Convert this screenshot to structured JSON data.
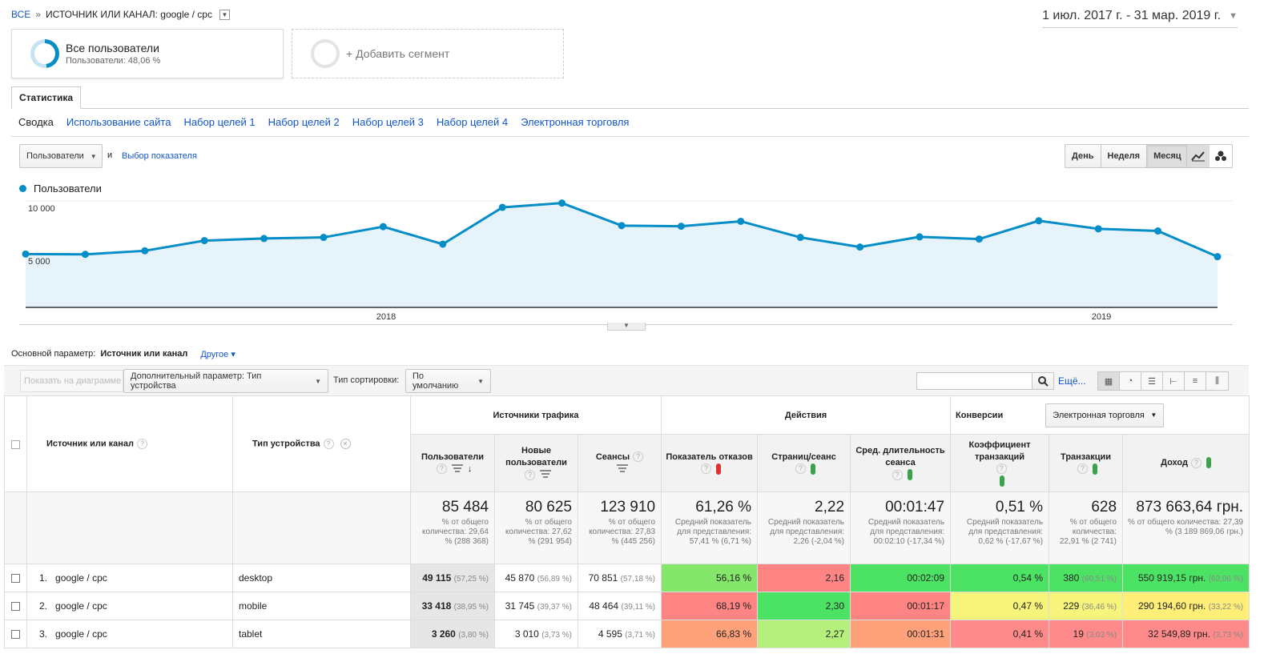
{
  "header": {
    "crumb_all": "ВСЕ",
    "crumb_sep": "»",
    "crumb_current": "ИСТОЧНИК ИЛИ КАНАЛ: google / cpc",
    "date_range": "1 июл. 2017 г. - 31 мар. 2019 г."
  },
  "segments": {
    "active_title": "Все пользователи",
    "active_sub": "Пользователи: 48,06 %",
    "add_label": "+ Добавить сегмент"
  },
  "tabs": {
    "main": "Статистика",
    "sub": [
      "Сводка",
      "Использование сайта",
      "Набор целей 1",
      "Набор целей 2",
      "Набор целей 3",
      "Набор целей 4",
      "Электронная торговля"
    ]
  },
  "chart_controls": {
    "metric_select": "Пользователи",
    "and": "и",
    "choose_metric": "Выбор показателя",
    "periods": [
      "День",
      "Неделя",
      "Месяц"
    ],
    "active_period": "Месяц"
  },
  "chart_data": {
    "type": "area",
    "series": [
      {
        "name": "Пользователи",
        "values": [
          5050,
          5020,
          5350,
          6300,
          6500,
          6600,
          7600,
          5970,
          9400,
          9800,
          7700,
          7640,
          8100,
          6600,
          5700,
          6650,
          6450,
          8150,
          7400,
          7200,
          4800
        ]
      }
    ],
    "x_tick_labels": [
      "2018",
      "2019"
    ],
    "y_tick_labels": [
      "10 000",
      "5 000"
    ],
    "ylim": [
      0,
      10000
    ],
    "color": "#058dc7",
    "fill_color": "#e6f3fa"
  },
  "primary_dimension": {
    "label": "Основной параметр:",
    "value": "Источник или канал",
    "other": "Другое"
  },
  "toolbar": {
    "plot_rows": "Показать на диаграмме",
    "secondary_dim": "Дополнительный параметр: Тип устройства",
    "sort_label": "Тип сортировки:",
    "sort_value": "По умолчанию",
    "more": "Ещё..."
  },
  "table": {
    "dim1": "Источник или канал",
    "dim2": "Тип устройства",
    "group_acquisition": "Источники трафика",
    "group_behavior": "Действия",
    "group_conversions": "Конверсии",
    "conversion_select": "Электронная торговля",
    "cols": {
      "users": "Пользователи",
      "new_users": "Новые пользователи",
      "sessions": "Сеансы",
      "bounce": "Показатель отказов",
      "pages": "Страниц/сеанс",
      "duration": "Сред. длительность сеанса",
      "conv_rate": "Коэффициент транзакций",
      "transactions": "Транзакции",
      "revenue": "Доход"
    },
    "totals": {
      "users": "85 484",
      "users_sub": "% от общего количества: 29,64 % (288 368)",
      "new_users": "80 625",
      "new_users_sub": "% от общего количества: 27,62 % (291 954)",
      "sessions": "123 910",
      "sessions_sub": "% от общего количества: 27,83 % (445 256)",
      "bounce": "61,26 %",
      "bounce_sub": "Средний показатель для представления: 57,41 % (6,71 %)",
      "pages": "2,22",
      "pages_sub": "Средний показатель для представления: 2,26 (-2,04 %)",
      "duration": "00:01:47",
      "duration_sub": "Средний показатель для представления: 00:02:10 (-17,34 %)",
      "conv_rate": "0,51 %",
      "conv_rate_sub": "Средний показатель для представления: 0,62 % (-17,67 %)",
      "transactions": "628",
      "transactions_sub": "% от общего количества: 22,91 % (2 741)",
      "revenue": "873 663,64 грн.",
      "revenue_sub": "% от общего количества: 27,39 % (3 189 869,06 грн.)"
    },
    "rows": [
      {
        "idx": "1.",
        "source": "google / cpc",
        "device": "desktop",
        "users": "49 115",
        "users_pct": "(57,25 %)",
        "new_users": "45 870",
        "new_users_pct": "(56,89 %)",
        "sessions": "70 851",
        "sessions_pct": "(57,18 %)",
        "bounce": "56,16 %",
        "pages": "2,16",
        "duration": "00:02:09",
        "conv_rate": "0,54 %",
        "transactions": "380",
        "transactions_pct": "(60,51 %)",
        "revenue": "550 919,15 грн.",
        "revenue_pct": "(63,06 %)"
      },
      {
        "idx": "2.",
        "source": "google / cpc",
        "device": "mobile",
        "users": "33 418",
        "users_pct": "(38,95 %)",
        "new_users": "31 745",
        "new_users_pct": "(39,37 %)",
        "sessions": "48 464",
        "sessions_pct": "(39,11 %)",
        "bounce": "68,19 %",
        "pages": "2,30",
        "duration": "00:01:17",
        "conv_rate": "0,47 %",
        "transactions": "229",
        "transactions_pct": "(36,46 %)",
        "revenue": "290 194,60 грн.",
        "revenue_pct": "(33,22 %)"
      },
      {
        "idx": "3.",
        "source": "google / cpc",
        "device": "tablet",
        "users": "3 260",
        "users_pct": "(3,80 %)",
        "new_users": "3 010",
        "new_users_pct": "(3,73 %)",
        "sessions": "4 595",
        "sessions_pct": "(3,71 %)",
        "bounce": "66,83 %",
        "pages": "2,27",
        "duration": "00:01:31",
        "conv_rate": "0,41 %",
        "transactions": "19",
        "transactions_pct": "(3,03 %)",
        "revenue": "32 549,89 грн.",
        "revenue_pct": "(3,73 %)"
      }
    ]
  }
}
